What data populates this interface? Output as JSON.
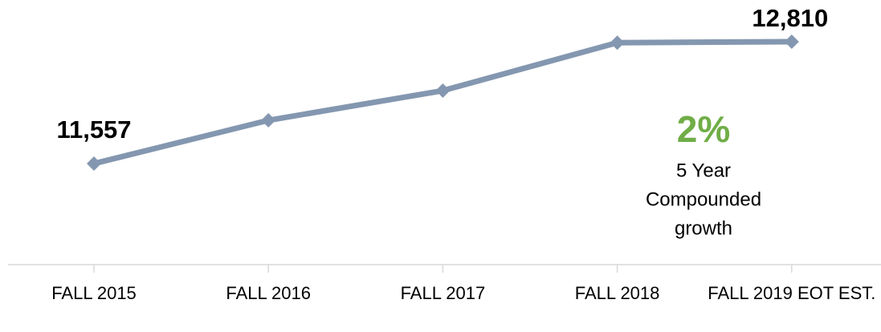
{
  "chart_data": {
    "type": "line",
    "categories": [
      "FALL 2015",
      "FALL 2016",
      "FALL 2017",
      "FALL 2018",
      "FALL 2019 EOT EST."
    ],
    "series": [
      {
        "color": "#8497b0",
        "values": [
          11557,
          12002,
          12307,
          12800,
          12810
        ],
        "value_labels": [
          "11,557",
          null,
          null,
          null,
          "12,810"
        ]
      }
    ],
    "annotation": {
      "value": "2%",
      "color": "#70ad47",
      "text": [
        "5 Year",
        "Compounded",
        "growth"
      ]
    }
  }
}
